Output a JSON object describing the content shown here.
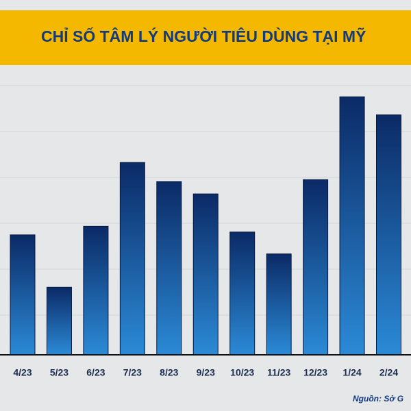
{
  "chart_data": {
    "type": "bar",
    "title": "CHỈ SỐ TÂM LÝ NGƯỜI TIÊU DÙNG TẠI MỸ",
    "source": "Nguồn: Sở G",
    "categories": [
      "4/23",
      "5/23",
      "6/23",
      "7/23",
      "8/23",
      "9/23",
      "10/23",
      "11/23",
      "12/23",
      "1/24",
      "2/24"
    ],
    "values": [
      62.6,
      57.1,
      63.5,
      70.2,
      68.2,
      66.9,
      62.9,
      60.6,
      68.4,
      77.1,
      75.2
    ],
    "color": "#0b2a66",
    "ylim": [
      50,
      80
    ]
  }
}
